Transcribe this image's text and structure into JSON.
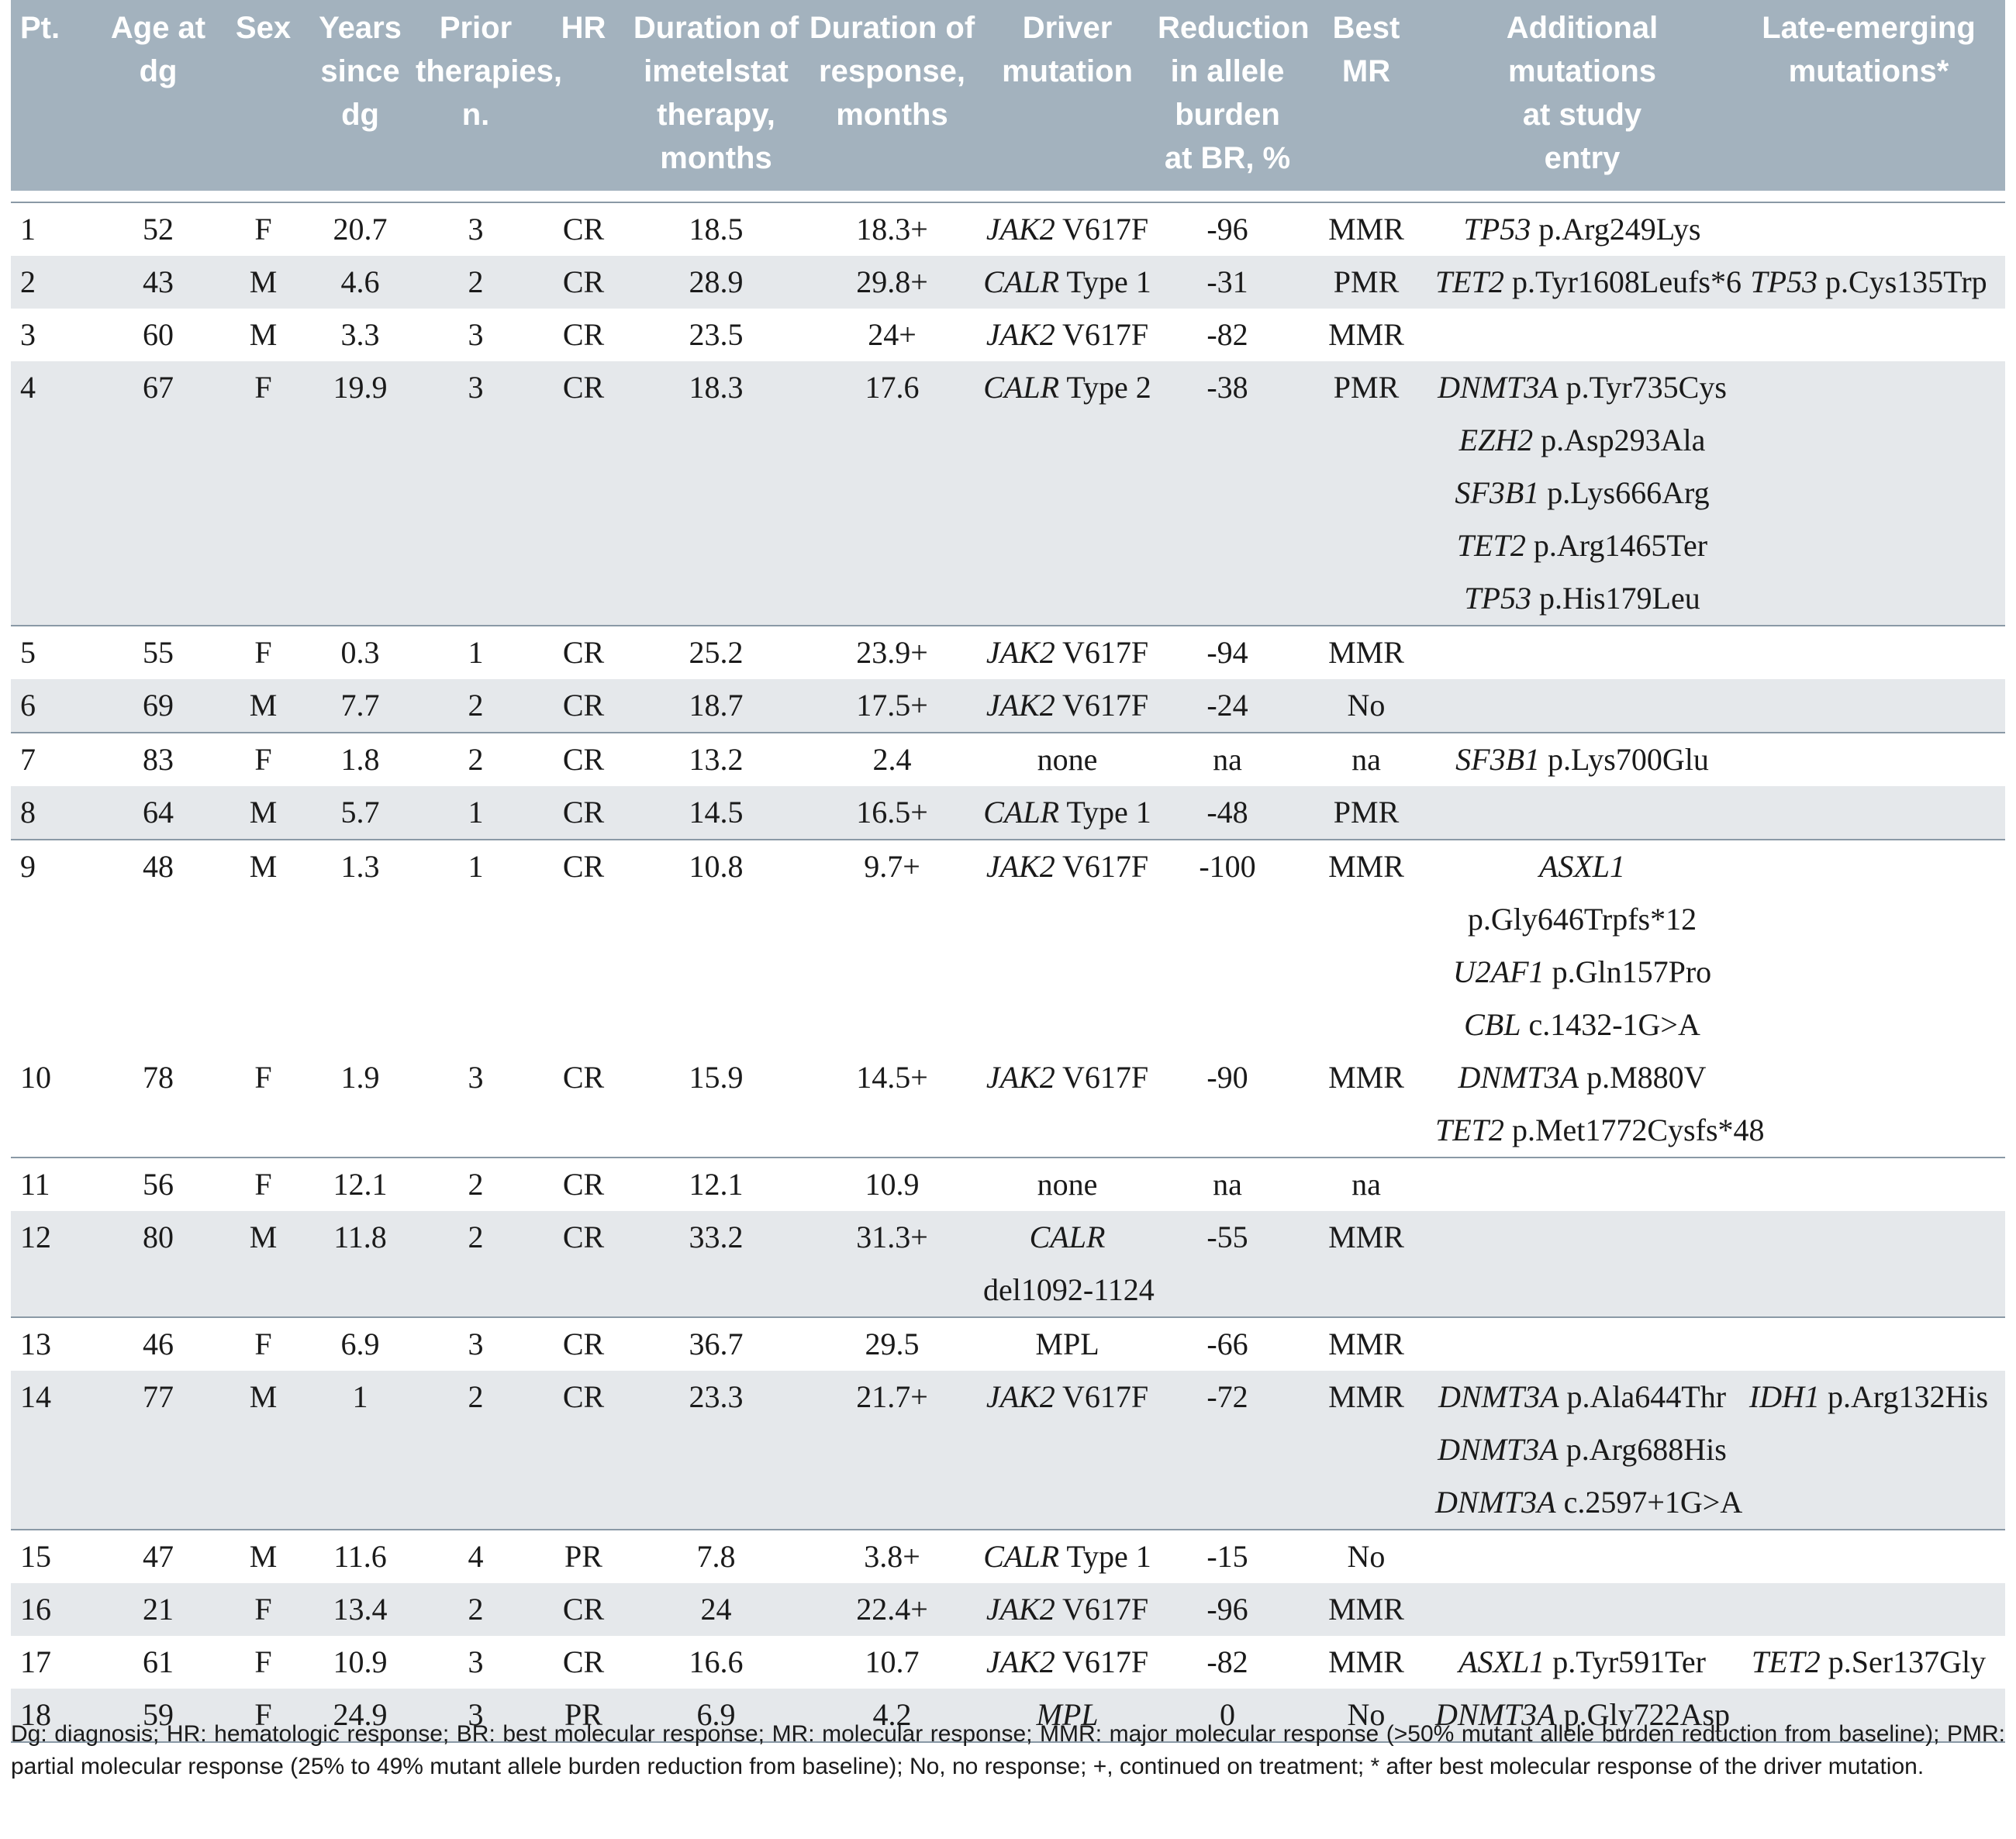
{
  "headers": [
    [
      "Pt."
    ],
    [
      "Age at",
      "dg"
    ],
    [
      "Sex"
    ],
    [
      "Years",
      "since",
      "dg"
    ],
    [
      "Prior",
      "therapies,",
      "n."
    ],
    [
      "HR"
    ],
    [
      "Duration of",
      "imetelstat",
      "therapy,",
      "months"
    ],
    [
      "Duration of",
      "response,",
      "months"
    ],
    [
      "Driver",
      "mutation"
    ],
    [
      "Reduction",
      "in allele",
      "burden",
      "at BR, %"
    ],
    [
      "Best",
      "MR"
    ],
    [
      "Additional",
      "mutations",
      "at study",
      "entry"
    ],
    [
      "Late-emerging",
      "mutations*"
    ]
  ],
  "rows": [
    {
      "pt": "1",
      "age": "52",
      "sex": "F",
      "years": "20.7",
      "prior": "3",
      "hr": "CR",
      "dur_therapy": "18.5",
      "dur_response": "18.3+",
      "driver": [
        {
          "gene": "JAK2",
          "variant": "V617F"
        }
      ],
      "reduction": "-96",
      "best_mr": "MMR",
      "additional": [
        {
          "gene": "TP53",
          "variant": "p.Arg249Lys"
        }
      ],
      "late": []
    },
    {
      "pt": "2",
      "age": "43",
      "sex": "M",
      "years": "4.6",
      "prior": "2",
      "hr": "CR",
      "dur_therapy": "28.9",
      "dur_response": "29.8+",
      "driver": [
        {
          "gene": "CALR",
          "variant": "Type 1"
        }
      ],
      "reduction": "-31",
      "best_mr": "PMR",
      "additional": [
        {
          "gene": "TET2",
          "variant": "p.Tyr1608Leufs*6"
        }
      ],
      "late": [
        {
          "gene": "TP53",
          "variant": "p.Cys135Trp"
        }
      ]
    },
    {
      "pt": "3",
      "age": "60",
      "sex": "M",
      "years": "3.3",
      "prior": "3",
      "hr": "CR",
      "dur_therapy": "23.5",
      "dur_response": "24+",
      "driver": [
        {
          "gene": "JAK2",
          "variant": "V617F"
        }
      ],
      "reduction": "-82",
      "best_mr": "MMR",
      "additional": [],
      "late": []
    },
    {
      "pt": "4",
      "age": "67",
      "sex": "F",
      "years": "19.9",
      "prior": "3",
      "hr": "CR",
      "dur_therapy": "18.3",
      "dur_response": "17.6",
      "driver": [
        {
          "gene": "CALR",
          "variant": "Type 2"
        }
      ],
      "reduction": "-38",
      "best_mr": "PMR",
      "additional": [
        {
          "gene": "DNMT3A",
          "variant": "p.Tyr735Cys"
        },
        {
          "gene": "EZH2",
          "variant": "p.Asp293Ala"
        },
        {
          "gene": "SF3B1",
          "variant": "p.Lys666Arg"
        },
        {
          "gene": "TET2",
          "variant": "p.Arg1465Ter"
        },
        {
          "gene": "TP53",
          "variant": "p.His179Leu"
        }
      ],
      "late": []
    },
    {
      "pt": "5",
      "age": "55",
      "sex": "F",
      "years": "0.3",
      "prior": "1",
      "hr": "CR",
      "dur_therapy": "25.2",
      "dur_response": "23.9+",
      "driver": [
        {
          "gene": "JAK2",
          "variant": "V617F"
        }
      ],
      "reduction": "-94",
      "best_mr": "MMR",
      "additional": [],
      "late": []
    },
    {
      "pt": "6",
      "age": "69",
      "sex": "M",
      "years": "7.7",
      "prior": "2",
      "hr": "CR",
      "dur_therapy": "18.7",
      "dur_response": "17.5+",
      "driver": [
        {
          "gene": "JAK2",
          "variant": "V617F"
        }
      ],
      "reduction": "-24",
      "best_mr": "No",
      "additional": [],
      "late": []
    },
    {
      "pt": "7",
      "age": "83",
      "sex": "F",
      "years": "1.8",
      "prior": "2",
      "hr": "CR",
      "dur_therapy": "13.2",
      "dur_response": "2.4",
      "driver": [
        {
          "gene": "",
          "variant": "none"
        }
      ],
      "reduction": "na",
      "best_mr": "na",
      "additional": [
        {
          "gene": "SF3B1",
          "variant": "p.Lys700Glu"
        }
      ],
      "late": []
    },
    {
      "pt": "8",
      "age": "64",
      "sex": "M",
      "years": "5.7",
      "prior": "1",
      "hr": "CR",
      "dur_therapy": "14.5",
      "dur_response": "16.5+",
      "driver": [
        {
          "gene": "CALR",
          "variant": "Type 1"
        }
      ],
      "reduction": "-48",
      "best_mr": "PMR",
      "additional": [],
      "late": []
    },
    {
      "pt": "9",
      "age": "48",
      "sex": "M",
      "years": "1.3",
      "prior": "1",
      "hr": "CR",
      "dur_therapy": "10.8",
      "dur_response": "9.7+",
      "driver": [
        {
          "gene": "JAK2",
          "variant": "V617F"
        }
      ],
      "reduction": "-100",
      "best_mr": "MMR",
      "additional": [
        {
          "gene": "ASXL1",
          "variant": ""
        },
        {
          "gene": "",
          "variant": "p.Gly646Trpfs*12"
        },
        {
          "gene": "U2AF1",
          "variant": "p.Gln157Pro"
        },
        {
          "gene": "CBL",
          "variant": "c.1432-1G>A"
        }
      ],
      "late": []
    },
    {
      "pt": "10",
      "age": "78",
      "sex": "F",
      "years": "1.9",
      "prior": "3",
      "hr": "CR",
      "dur_therapy": "15.9",
      "dur_response": "14.5+",
      "driver": [
        {
          "gene": "JAK2",
          "variant": "V617F"
        }
      ],
      "reduction": "-90",
      "best_mr": "MMR",
      "additional": [
        {
          "gene": "DNMT3A",
          "variant": "p.M880V"
        },
        {
          "gene": "TET2",
          "variant": "p.Met1772Cysfs*48"
        }
      ],
      "late": []
    },
    {
      "pt": "11",
      "age": "56",
      "sex": "F",
      "years": "12.1",
      "prior": "2",
      "hr": "CR",
      "dur_therapy": "12.1",
      "dur_response": "10.9",
      "driver": [
        {
          "gene": "",
          "variant": "none"
        }
      ],
      "reduction": "na",
      "best_mr": "na",
      "additional": [],
      "late": []
    },
    {
      "pt": "12",
      "age": "80",
      "sex": "M",
      "years": "11.8",
      "prior": "2",
      "hr": "CR",
      "dur_therapy": "33.2",
      "dur_response": "31.3+",
      "driver": [
        {
          "gene": "CALR",
          "variant": ""
        },
        {
          "gene": "",
          "variant": "del1092-1124"
        }
      ],
      "reduction": "-55",
      "best_mr": "MMR",
      "additional": [],
      "late": []
    },
    {
      "pt": "13",
      "age": "46",
      "sex": "F",
      "years": "6.9",
      "prior": "3",
      "hr": "CR",
      "dur_therapy": "36.7",
      "dur_response": "29.5",
      "driver": [
        {
          "gene": "",
          "variant": "MPL"
        }
      ],
      "reduction": "-66",
      "best_mr": "MMR",
      "additional": [],
      "late": []
    },
    {
      "pt": "14",
      "age": "77",
      "sex": "M",
      "years": "1",
      "prior": "2",
      "hr": "CR",
      "dur_therapy": "23.3",
      "dur_response": "21.7+",
      "driver": [
        {
          "gene": "JAK2",
          "variant": "V617F"
        }
      ],
      "reduction": "-72",
      "best_mr": "MMR",
      "additional": [
        {
          "gene": "DNMT3A",
          "variant": "p.Ala644Thr"
        },
        {
          "gene": "DNMT3A",
          "variant": "p.Arg688His"
        },
        {
          "gene": "DNMT3A",
          "variant": "c.2597+1G>A"
        }
      ],
      "late": [
        {
          "gene": "IDH1",
          "variant": "p.Arg132His"
        }
      ]
    },
    {
      "pt": "15",
      "age": "47",
      "sex": "M",
      "years": "11.6",
      "prior": "4",
      "hr": "PR",
      "dur_therapy": "7.8",
      "dur_response": "3.8+",
      "driver": [
        {
          "gene": "CALR",
          "variant": "Type 1"
        }
      ],
      "reduction": "-15",
      "best_mr": "No",
      "additional": [],
      "late": []
    },
    {
      "pt": "16",
      "age": "21",
      "sex": "F",
      "years": "13.4",
      "prior": "2",
      "hr": "CR",
      "dur_therapy": "24",
      "dur_response": "22.4+",
      "driver": [
        {
          "gene": "JAK2",
          "variant": "V617F"
        }
      ],
      "reduction": "-96",
      "best_mr": "MMR",
      "additional": [],
      "late": []
    },
    {
      "pt": "17",
      "age": "61",
      "sex": "F",
      "years": "10.9",
      "prior": "3",
      "hr": "CR",
      "dur_therapy": "16.6",
      "dur_response": "10.7",
      "driver": [
        {
          "gene": "JAK2",
          "variant": "V617F"
        }
      ],
      "reduction": "-82",
      "best_mr": "MMR",
      "additional": [
        {
          "gene": "ASXL1",
          "variant": "p.Tyr591Ter"
        }
      ],
      "late": [
        {
          "gene": "TET2",
          "variant": "p.Ser137Gly"
        }
      ]
    },
    {
      "pt": "18",
      "age": "59",
      "sex": "F",
      "years": "24.9",
      "prior": "3",
      "hr": "PR",
      "dur_therapy": "6.9",
      "dur_response": "4.2",
      "driver": [
        {
          "gene": "MPL",
          "variant": ""
        }
      ],
      "reduction": "0",
      "best_mr": "No",
      "additional": [
        {
          "gene": "DNMT3A",
          "variant": "p.Gly722Asp"
        }
      ],
      "late": []
    }
  ],
  "footnote": "Dg: diagnosis; HR: hematologic response; BR: best molecular response; MR: molecular response; MMR: major molecular response (>50% mutant allele burden reduction from baseline); PMR: partial molecular response (25% to 49% mutant allele burden reduction from baseline); No, no response; +, continued on treatment; * after best molecular response of the driver mutation."
}
